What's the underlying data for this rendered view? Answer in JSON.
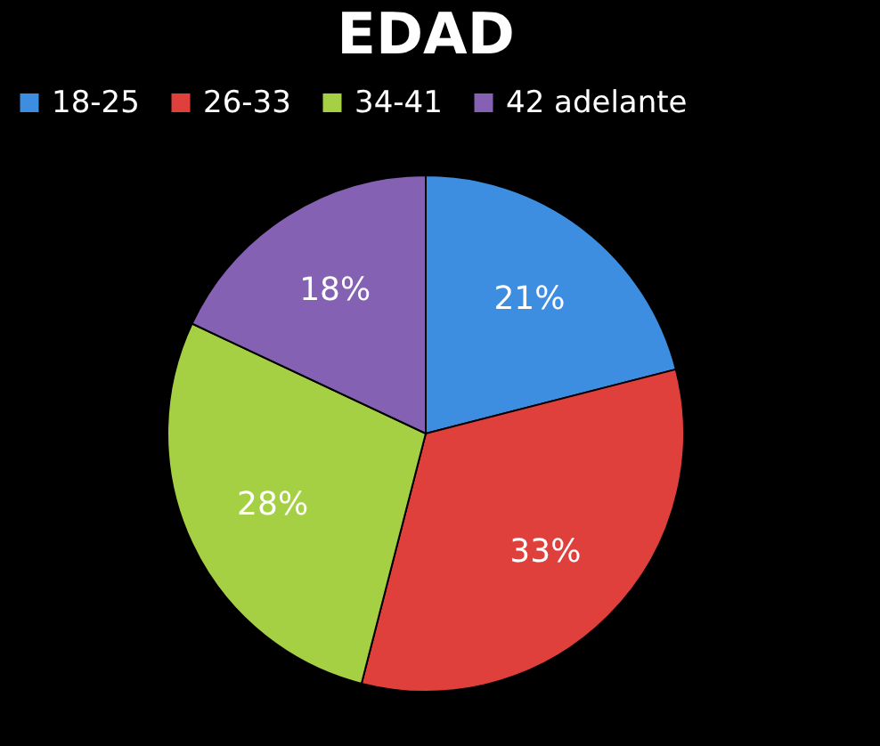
{
  "chart_data": {
    "type": "pie",
    "title": "EDAD",
    "categories": [
      "18-25",
      "26-33",
      "34-41",
      "42 adelante"
    ],
    "values": [
      21,
      33,
      28,
      18
    ],
    "value_labels": [
      "21%",
      "33%",
      "28%",
      "18%"
    ],
    "colors": [
      "#3d8ee0",
      "#e0403c",
      "#a6d043",
      "#8461b3"
    ],
    "legend": "top"
  }
}
